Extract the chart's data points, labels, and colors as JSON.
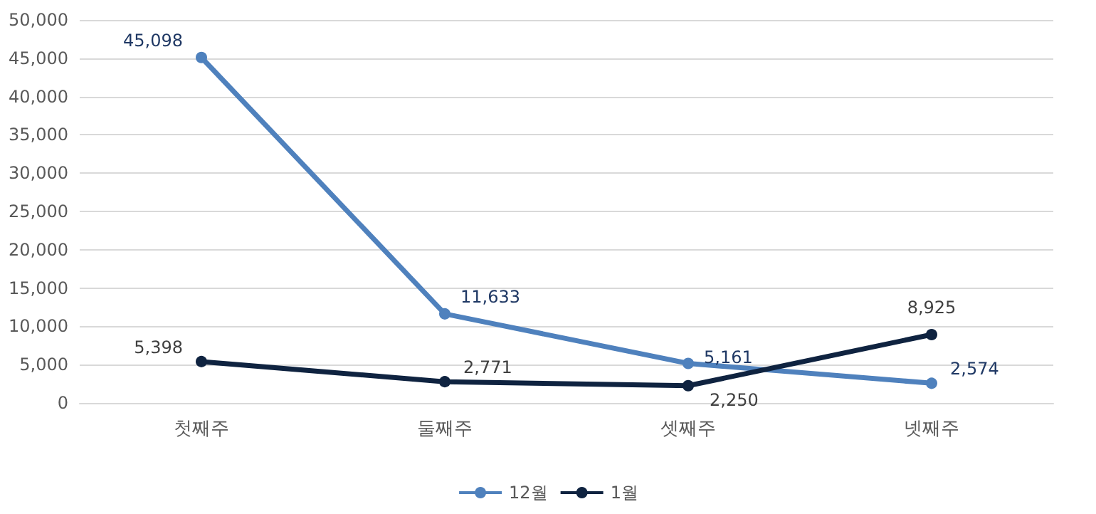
{
  "chart_data": {
    "type": "line",
    "categories": [
      "첫째주",
      "둘째주",
      "셋째주",
      "넷째주"
    ],
    "series": [
      {
        "name": "12월",
        "color": "#4f81bd",
        "values": [
          45098,
          11633,
          5161,
          2574
        ],
        "value_labels": [
          "45,098",
          "11,633",
          "5,161",
          "2,574"
        ]
      },
      {
        "name": "1월",
        "color": "#0f2340",
        "values": [
          5398,
          2771,
          2250,
          8925
        ],
        "value_labels": [
          "5,398",
          "2,771",
          "2,250",
          "8,925"
        ]
      }
    ],
    "ylim": [
      0,
      50000
    ],
    "yticks": [
      0,
      {
        "value": 5000,
        "label": "5,000"
      },
      {
        "value": 10000,
        "label": "10,000"
      },
      {
        "value": 15000,
        "label": "15,000"
      },
      {
        "value": 20000,
        "label": "20,000"
      },
      {
        "value": 25000,
        "label": "25,000"
      },
      {
        "value": 30000,
        "label": "30,000"
      },
      {
        "value": 35000,
        "label": "35,000"
      },
      {
        "value": 40000,
        "label": "40,000"
      },
      {
        "value": 45000,
        "label": "45,000"
      },
      {
        "value": 50000,
        "label": "50,000"
      }
    ],
    "grid": "y",
    "legend": "bottom",
    "marker": "circle",
    "line_style": "solid"
  }
}
